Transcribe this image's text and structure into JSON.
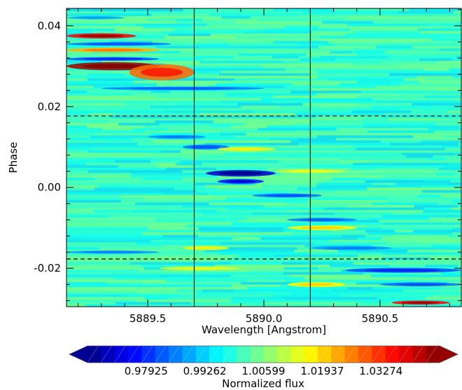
{
  "chart_data": {
    "type": "heatmap",
    "title": "",
    "xlabel": "Wavelength [Angstrom]",
    "ylabel": "Phase",
    "xlim": [
      5889.15,
      5890.85
    ],
    "ylim": [
      -0.0295,
      0.0443
    ],
    "x_ticks": [
      {
        "value": 5889.5,
        "label": "5889.5"
      },
      {
        "value": 5890.0,
        "label": "5890.0"
      },
      {
        "value": 5890.5,
        "label": "5890.5"
      }
    ],
    "y_ticks": [
      {
        "value": 0.04,
        "label": "0.04"
      },
      {
        "value": 0.02,
        "label": "0.02"
      },
      {
        "value": 0.0,
        "label": "0.00"
      },
      {
        "value": -0.02,
        "label": "-0.02"
      }
    ],
    "vertical_lines": [
      5889.7,
      5890.2
    ],
    "horizontal_dashed_lines": [
      0.0177,
      -0.0177
    ],
    "colorbar": {
      "label": "Normalized flux",
      "range": [
        0.9659,
        1.0461
      ],
      "extend": "both",
      "n_levels": 26,
      "tick_values": [
        0.97925,
        0.99262,
        1.00599,
        1.01937,
        1.03274
      ],
      "tick_labels": [
        "0.97925",
        "0.99262",
        "1.00599",
        "1.01937",
        "1.03274"
      ]
    },
    "background_value": 1.0,
    "features": [
      {
        "kind": "emission",
        "x0": 5889.15,
        "x1": 5889.55,
        "y": 0.03,
        "h": 0.002,
        "v": 1.044
      },
      {
        "kind": "emission",
        "x0": 5889.42,
        "x1": 5889.7,
        "y": 0.0285,
        "h": 0.004,
        "v": 1.028
      },
      {
        "kind": "emission",
        "x0": 5889.15,
        "x1": 5889.45,
        "y": 0.0375,
        "h": 0.0013,
        "v": 1.036
      },
      {
        "kind": "emission",
        "x0": 5889.15,
        "x1": 5889.55,
        "y": 0.034,
        "h": 0.0012,
        "v": 1.022
      },
      {
        "kind": "absorption",
        "x0": 5889.15,
        "x1": 5889.6,
        "y": 0.0355,
        "h": 0.0009,
        "v": 0.985
      },
      {
        "kind": "absorption",
        "x0": 5889.15,
        "x1": 5889.55,
        "y": 0.0318,
        "h": 0.0009,
        "v": 0.982
      },
      {
        "kind": "absorption",
        "x0": 5889.3,
        "x1": 5890.0,
        "y": 0.0245,
        "h": 0.0009,
        "v": 0.986
      },
      {
        "kind": "absorption",
        "x0": 5889.15,
        "x1": 5889.4,
        "y": 0.042,
        "h": 0.0008,
        "v": 0.99
      },
      {
        "kind": "absorption",
        "x0": 5889.5,
        "x1": 5889.75,
        "y": 0.0125,
        "h": 0.001,
        "v": 0.988
      },
      {
        "kind": "absorption",
        "x0": 5889.65,
        "x1": 5889.85,
        "y": 0.01,
        "h": 0.0012,
        "v": 0.985
      },
      {
        "kind": "absorption",
        "x0": 5889.75,
        "x1": 5890.05,
        "y": 0.0035,
        "h": 0.0016,
        "v": 0.972
      },
      {
        "kind": "absorption",
        "x0": 5889.8,
        "x1": 5890.0,
        "y": 0.0015,
        "h": 0.0012,
        "v": 0.978
      },
      {
        "kind": "absorption",
        "x0": 5889.95,
        "x1": 5890.25,
        "y": -0.002,
        "h": 0.001,
        "v": 0.985
      },
      {
        "kind": "absorption",
        "x0": 5890.1,
        "x1": 5890.4,
        "y": -0.008,
        "h": 0.001,
        "v": 0.986
      },
      {
        "kind": "absorption",
        "x0": 5890.2,
        "x1": 5890.55,
        "y": -0.015,
        "h": 0.001,
        "v": 0.988
      },
      {
        "kind": "absorption",
        "x0": 5890.35,
        "x1": 5890.85,
        "y": -0.0205,
        "h": 0.0012,
        "v": 0.982
      },
      {
        "kind": "absorption",
        "x0": 5890.5,
        "x1": 5890.85,
        "y": -0.024,
        "h": 0.001,
        "v": 0.985
      },
      {
        "kind": "absorption",
        "x0": 5889.15,
        "x1": 5889.55,
        "y": -0.016,
        "h": 0.0008,
        "v": 0.988
      },
      {
        "kind": "emission",
        "x0": 5889.8,
        "x1": 5890.05,
        "y": 0.0095,
        "h": 0.001,
        "v": 1.014
      },
      {
        "kind": "emission",
        "x0": 5890.05,
        "x1": 5890.35,
        "y": 0.004,
        "h": 0.001,
        "v": 1.012
      },
      {
        "kind": "emission",
        "x0": 5890.1,
        "x1": 5890.4,
        "y": -0.01,
        "h": 0.0012,
        "v": 1.016
      },
      {
        "kind": "emission",
        "x0": 5889.65,
        "x1": 5889.85,
        "y": -0.015,
        "h": 0.001,
        "v": 1.014
      },
      {
        "kind": "emission",
        "x0": 5890.1,
        "x1": 5890.35,
        "y": -0.024,
        "h": 0.0012,
        "v": 1.016
      },
      {
        "kind": "emission",
        "x0": 5890.55,
        "x1": 5890.8,
        "y": -0.0285,
        "h": 0.001,
        "v": 1.036
      },
      {
        "kind": "emission",
        "x0": 5889.55,
        "x1": 5889.9,
        "y": -0.02,
        "h": 0.001,
        "v": 1.012
      }
    ]
  }
}
